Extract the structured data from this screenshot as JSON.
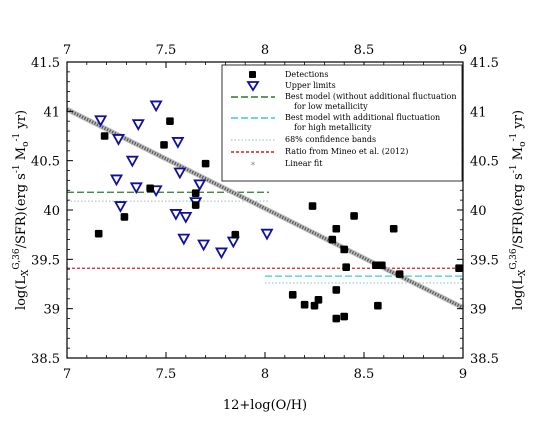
{
  "chart_data": {
    "type": "scatter",
    "xlabel": "12+log(O/H)",
    "ylabel_main": "log(L",
    "ylabel_sub": "X",
    "ylabel_sup": "G,36",
    "ylabel_mid": "/SFR)(erg s",
    "ylabel_exp1": "-1",
    "ylabel_sun": " M",
    "ylabel_sun_sub": "o",
    "ylabel_exp2": "-1",
    "ylabel_tail": " yr)",
    "xlim": [
      7,
      9
    ],
    "ylim": [
      38.5,
      41.5
    ],
    "xticks": [
      "7",
      "7.5",
      "8",
      "8.5",
      "9"
    ],
    "yticks": [
      "38.5",
      "39",
      "39.5",
      "40",
      "40.5",
      "41",
      "41.5"
    ],
    "legend_position": "top-right",
    "legend": [
      {
        "label": "Detections",
        "style": "filled-square",
        "color": "#000000"
      },
      {
        "label": "Upper limits",
        "style": "open-triangle-down",
        "color": "#1010a0"
      },
      {
        "label": "Best model (without additional fluctuation",
        "label2": "for low metallicity",
        "style": "dashed",
        "color": "#2a7a2a"
      },
      {
        "label": "Best model with additional fluctuation",
        "label2": "for high metallicity",
        "style": "dashed",
        "color": "#3cc8d8"
      },
      {
        "label": "68% confidence bands",
        "style": "dotted",
        "color": "#8fbfbf"
      },
      {
        "label": "Ratio from Mineo et al. (2012)",
        "style": "dashed",
        "color": "#cc2020"
      },
      {
        "label": "Linear fit",
        "style": "asterisk",
        "color": "#888888"
      }
    ],
    "detections": [
      [
        7.16,
        39.76
      ],
      [
        7.19,
        40.75
      ],
      [
        7.29,
        39.93
      ],
      [
        7.42,
        40.22
      ],
      [
        7.49,
        40.66
      ],
      [
        7.52,
        40.9
      ],
      [
        7.65,
        40.17
      ],
      [
        7.65,
        40.05
      ],
      [
        7.7,
        40.47
      ],
      [
        7.85,
        39.75
      ],
      [
        8.14,
        39.14
      ],
      [
        8.2,
        39.04
      ],
      [
        8.24,
        40.04
      ],
      [
        8.25,
        39.03
      ],
      [
        8.27,
        39.09
      ],
      [
        8.34,
        39.7
      ],
      [
        8.36,
        39.81
      ],
      [
        8.36,
        39.19
      ],
      [
        8.36,
        38.9
      ],
      [
        8.4,
        38.92
      ],
      [
        8.4,
        39.6
      ],
      [
        8.41,
        39.42
      ],
      [
        8.45,
        39.94
      ],
      [
        8.56,
        39.44
      ],
      [
        8.57,
        39.03
      ],
      [
        8.59,
        39.44
      ],
      [
        8.65,
        39.81
      ],
      [
        8.68,
        39.35
      ],
      [
        8.98,
        39.41
      ]
    ],
    "upper_limits": [
      [
        7.17,
        40.91
      ],
      [
        7.25,
        40.31
      ],
      [
        7.26,
        40.72
      ],
      [
        7.27,
        40.04
      ],
      [
        7.33,
        40.5
      ],
      [
        7.35,
        40.23
      ],
      [
        7.36,
        40.87
      ],
      [
        7.45,
        40.2
      ],
      [
        7.45,
        41.06
      ],
      [
        7.55,
        39.96
      ],
      [
        7.56,
        40.69
      ],
      [
        7.57,
        40.38
      ],
      [
        7.59,
        39.71
      ],
      [
        7.6,
        39.93
      ],
      [
        7.65,
        40.08
      ],
      [
        7.67,
        40.26
      ],
      [
        7.69,
        39.65
      ],
      [
        7.78,
        39.57
      ],
      [
        7.84,
        39.68
      ],
      [
        8.01,
        39.76
      ]
    ],
    "green_line": {
      "x": [
        7,
        8.02
      ],
      "y": 40.18
    },
    "green_band": {
      "x": [
        7,
        8.02
      ],
      "y": 40.09
    },
    "cyan_line": {
      "x": [
        8,
        9
      ],
      "y": 39.33
    },
    "cyan_band": {
      "x": [
        8,
        9
      ],
      "y": 39.26
    },
    "red_line": {
      "x": [
        7,
        9
      ],
      "y": 39.41
    },
    "linear_fit": {
      "x": [
        7,
        9
      ],
      "y": [
        41.02,
        39.01
      ]
    }
  }
}
